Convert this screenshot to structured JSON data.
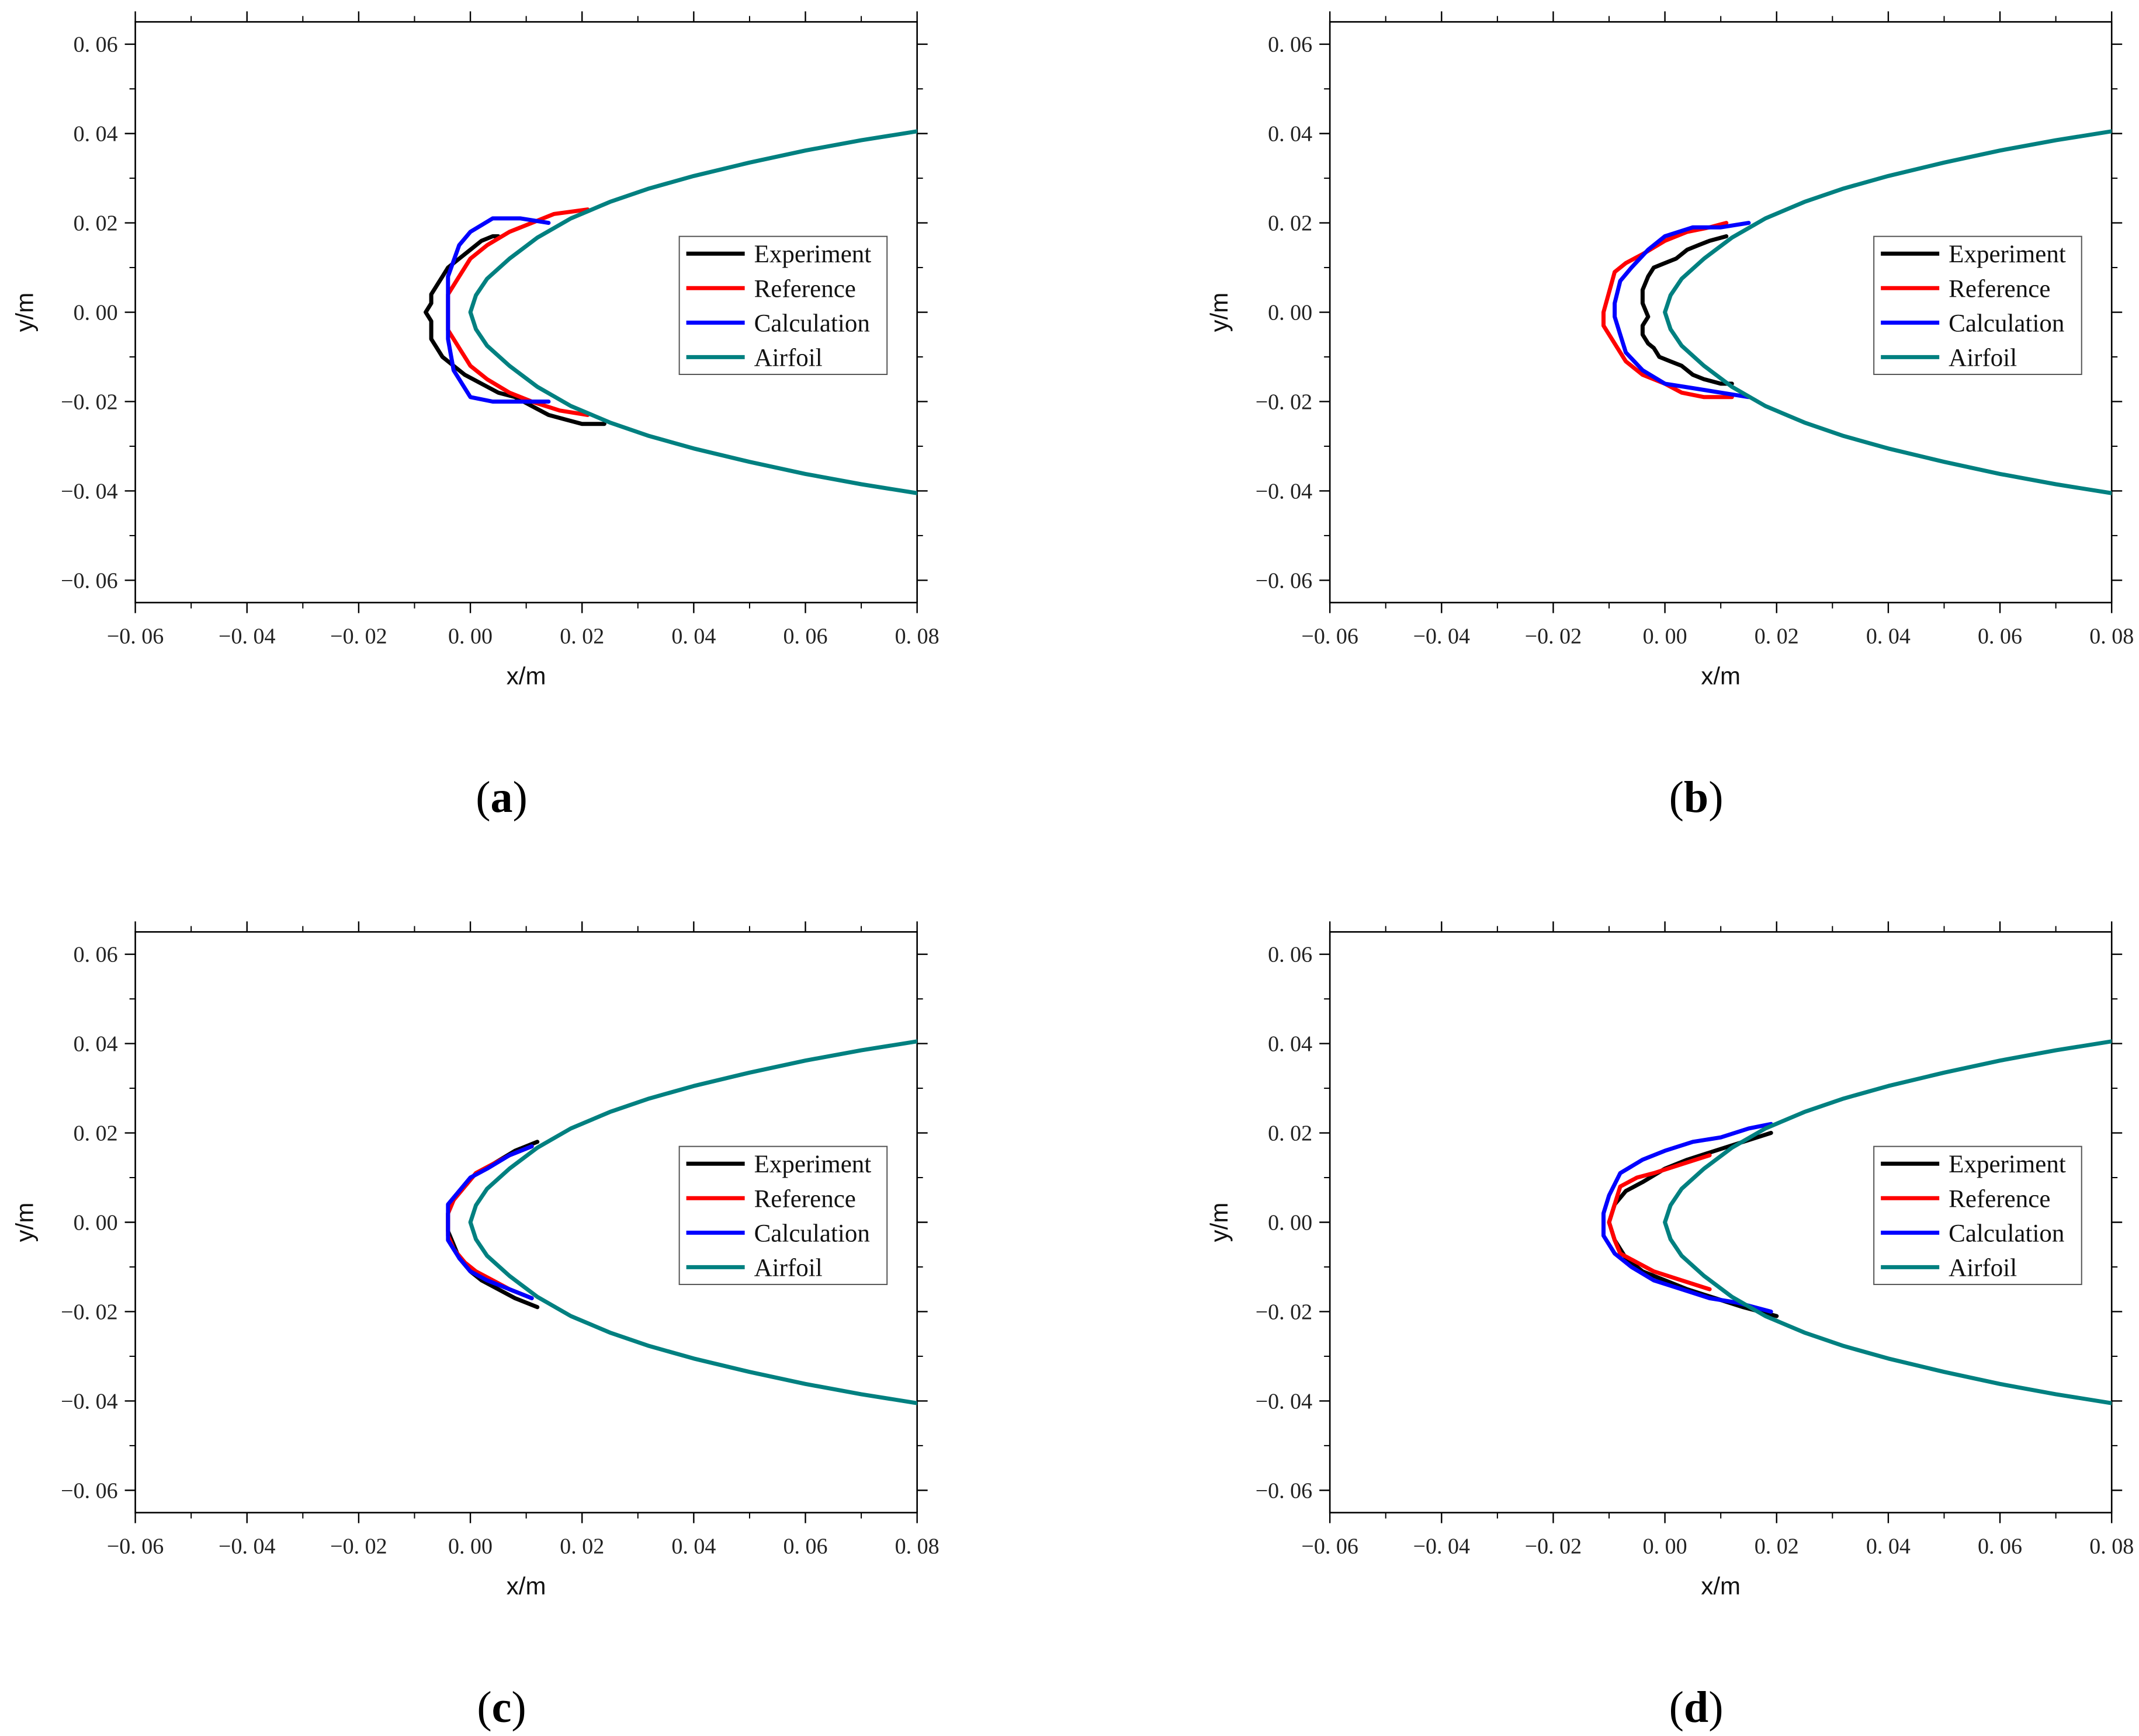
{
  "chart_data": [
    {
      "type": "line",
      "panel": "a",
      "panel_label": "a",
      "xlabel": "x/m",
      "ylabel": "y/m",
      "xlim": [
        -0.06,
        0.08
      ],
      "ylim": [
        -0.065,
        0.065
      ],
      "xticks": [
        -0.06,
        -0.04,
        -0.02,
        0.0,
        0.02,
        0.04,
        0.06,
        0.08
      ],
      "xtick_labels": [
        "−0. 06",
        "−0. 04",
        "−0. 02",
        "0. 00",
        "0. 02",
        "0. 04",
        "0. 06",
        "0. 08"
      ],
      "yticks": [
        0.06,
        0.04,
        0.02,
        0.0,
        -0.02,
        -0.04,
        -0.06
      ],
      "ytick_labels": [
        "0. 06",
        "0. 04",
        "0. 02",
        "0. 00",
        "−0. 02",
        "−0. 04",
        "−0. 06"
      ],
      "legend": [
        "Experiment",
        "Reference",
        "Calculation",
        "Airfoil"
      ],
      "series": [
        {
          "name": "Experiment",
          "color": "#000000",
          "x": [
            0.024,
            0.02,
            0.017,
            0.014,
            0.011,
            0.008,
            0.005,
            0.002,
            -0.001,
            -0.003,
            -0.005,
            -0.006,
            -0.007,
            -0.007,
            -0.007,
            -0.008,
            -0.007,
            -0.007,
            -0.006,
            -0.005,
            -0.004,
            -0.002,
            0.0,
            0.002,
            0.004,
            0.005
          ],
          "y": [
            -0.025,
            -0.025,
            -0.024,
            -0.023,
            -0.021,
            -0.019,
            -0.018,
            -0.016,
            -0.014,
            -0.012,
            -0.01,
            -0.008,
            -0.006,
            -0.004,
            -0.002,
            0.0,
            0.002,
            0.004,
            0.006,
            0.008,
            0.01,
            0.012,
            0.014,
            0.016,
            0.017,
            0.017
          ]
        },
        {
          "name": "Reference",
          "color": "#ff0000",
          "x": [
            0.021,
            0.016,
            0.011,
            0.007,
            0.003,
            0.0,
            -0.002,
            -0.004,
            -0.004,
            -0.004,
            -0.002,
            0.0,
            0.003,
            0.007,
            0.011,
            0.015,
            0.021
          ],
          "y": [
            -0.023,
            -0.022,
            -0.02,
            -0.018,
            -0.015,
            -0.012,
            -0.008,
            -0.004,
            0.0,
            0.004,
            0.008,
            0.012,
            0.015,
            0.018,
            0.02,
            0.022,
            0.023
          ]
        },
        {
          "name": "Calculation",
          "color": "#0000ff",
          "x": [
            0.014,
            0.009,
            0.004,
            0.0,
            -0.003,
            -0.004,
            -0.004,
            -0.004,
            -0.002,
            0.0,
            0.004,
            0.009,
            0.014
          ],
          "y": [
            -0.02,
            -0.02,
            -0.02,
            -0.019,
            -0.013,
            -0.006,
            0.0,
            0.008,
            0.015,
            0.018,
            0.021,
            0.021,
            0.02
          ]
        }
      ]
    },
    {
      "type": "line",
      "panel": "b",
      "panel_label": "b",
      "xlabel": "x/m",
      "ylabel": "y/m",
      "xlim": [
        -0.06,
        0.08
      ],
      "ylim": [
        -0.065,
        0.065
      ],
      "xticks": [
        -0.06,
        -0.04,
        -0.02,
        0.0,
        0.02,
        0.04,
        0.06,
        0.08
      ],
      "xtick_labels": [
        "−0. 06",
        "−0. 04",
        "−0. 02",
        "0. 00",
        "0. 02",
        "0. 04",
        "0. 06",
        "0. 08"
      ],
      "yticks": [
        0.06,
        0.04,
        0.02,
        0.0,
        -0.02,
        -0.04,
        -0.06
      ],
      "ytick_labels": [
        "0. 06",
        "0. 04",
        "0. 02",
        "0. 00",
        "−0. 02",
        "−0. 04",
        "−0. 06"
      ],
      "legend": [
        "Experiment",
        "Reference",
        "Calculation",
        "Airfoil"
      ],
      "series": [
        {
          "name": "Experiment",
          "color": "#000000",
          "x": [
            0.012,
            0.01,
            0.007,
            0.005,
            0.003,
            0.001,
            -0.001,
            -0.002,
            -0.003,
            -0.004,
            -0.004,
            -0.003,
            -0.004,
            -0.004,
            -0.003,
            -0.002,
            0.0,
            0.002,
            0.004,
            0.006,
            0.008,
            0.011
          ],
          "y": [
            -0.016,
            -0.016,
            -0.015,
            -0.014,
            -0.012,
            -0.011,
            -0.01,
            -0.008,
            -0.007,
            -0.005,
            -0.003,
            -0.001,
            0.002,
            0.005,
            0.008,
            0.01,
            0.011,
            0.012,
            0.014,
            0.015,
            0.016,
            0.017
          ]
        },
        {
          "name": "Reference",
          "color": "#ff0000",
          "x": [
            0.012,
            0.007,
            0.003,
            0.0,
            -0.004,
            -0.007,
            -0.009,
            -0.011,
            -0.011,
            -0.009,
            -0.007,
            -0.004,
            0.0,
            0.004,
            0.008,
            0.011
          ],
          "y": [
            -0.019,
            -0.019,
            -0.018,
            -0.016,
            -0.014,
            -0.011,
            -0.007,
            -0.003,
            0.0,
            0.009,
            0.011,
            0.013,
            0.016,
            0.018,
            0.019,
            0.02
          ]
        },
        {
          "name": "Calculation",
          "color": "#0000ff",
          "x": [
            0.015,
            0.01,
            0.005,
            0.0,
            -0.004,
            -0.007,
            -0.008,
            -0.009,
            -0.009,
            -0.008,
            -0.006,
            -0.003,
            0.0,
            0.005,
            0.01,
            0.015
          ],
          "y": [
            -0.019,
            -0.018,
            -0.017,
            -0.016,
            -0.013,
            -0.009,
            -0.005,
            -0.001,
            0.002,
            0.007,
            0.01,
            0.014,
            0.017,
            0.019,
            0.019,
            0.02
          ]
        }
      ]
    },
    {
      "type": "line",
      "panel": "c",
      "panel_label": "c",
      "xlabel": "x/m",
      "ylabel": "y/m",
      "xlim": [
        -0.06,
        0.08
      ],
      "ylim": [
        -0.065,
        0.065
      ],
      "xticks": [
        -0.06,
        -0.04,
        -0.02,
        0.0,
        0.02,
        0.04,
        0.06,
        0.08
      ],
      "xtick_labels": [
        "−0. 06",
        "−0. 04",
        "−0. 02",
        "0. 00",
        "0. 02",
        "0. 04",
        "0. 06",
        "0. 08"
      ],
      "yticks": [
        0.06,
        0.04,
        0.02,
        0.0,
        -0.02,
        -0.04,
        -0.06
      ],
      "ytick_labels": [
        "0. 06",
        "0. 04",
        "0. 02",
        "0. 00",
        "−0. 02",
        "−0. 04",
        "−0. 06"
      ],
      "legend": [
        "Experiment",
        "Reference",
        "Calculation",
        "Airfoil"
      ],
      "series": [
        {
          "name": "Experiment",
          "color": "#000000",
          "x": [
            0.012,
            0.008,
            0.005,
            0.002,
            0.0,
            -0.002,
            -0.003,
            -0.004,
            -0.004,
            -0.003,
            -0.001,
            0.001,
            0.004,
            0.008,
            0.012
          ],
          "y": [
            -0.019,
            -0.017,
            -0.015,
            -0.013,
            -0.011,
            -0.008,
            -0.005,
            -0.002,
            0.002,
            0.005,
            0.008,
            0.011,
            0.013,
            0.016,
            0.018
          ]
        },
        {
          "name": "Reference",
          "color": "#ff0000",
          "x": [
            0.011,
            0.007,
            0.004,
            0.001,
            -0.001,
            -0.003,
            -0.004,
            -0.004,
            -0.003,
            -0.001,
            0.001,
            0.004,
            0.007,
            0.011
          ],
          "y": [
            -0.017,
            -0.015,
            -0.013,
            -0.011,
            -0.009,
            -0.006,
            -0.003,
            0.002,
            0.005,
            0.008,
            0.011,
            0.013,
            0.015,
            0.017
          ]
        },
        {
          "name": "Calculation",
          "color": "#0000ff",
          "x": [
            0.011,
            0.007,
            0.003,
            0.0,
            -0.002,
            -0.004,
            -0.004,
            -0.004,
            -0.002,
            0.0,
            0.003,
            0.007,
            0.011
          ],
          "y": [
            -0.017,
            -0.015,
            -0.013,
            -0.011,
            -0.008,
            -0.004,
            0.0,
            0.004,
            0.007,
            0.01,
            0.012,
            0.015,
            0.017
          ]
        }
      ]
    },
    {
      "type": "line",
      "panel": "d",
      "panel_label": "d",
      "xlabel": "x/m",
      "ylabel": "y/m",
      "xlim": [
        -0.06,
        0.08
      ],
      "ylim": [
        -0.065,
        0.065
      ],
      "xticks": [
        -0.06,
        -0.04,
        -0.02,
        0.0,
        0.02,
        0.04,
        0.06,
        0.08
      ],
      "xtick_labels": [
        "−0. 06",
        "−0. 04",
        "−0. 02",
        "0. 00",
        "0. 02",
        "0. 04",
        "0. 06",
        "0. 08"
      ],
      "yticks": [
        0.06,
        0.04,
        0.02,
        0.0,
        -0.02,
        -0.04,
        -0.06
      ],
      "ytick_labels": [
        "0. 06",
        "0. 04",
        "0. 02",
        "0. 00",
        "−0. 02",
        "−0. 04",
        "−0. 06"
      ],
      "legend": [
        "Experiment",
        "Reference",
        "Calculation",
        "Airfoil"
      ],
      "series": [
        {
          "name": "Experiment",
          "color": "#000000",
          "x": [
            0.02,
            0.014,
            0.009,
            0.004,
            0.0,
            -0.004,
            -0.007,
            -0.009,
            -0.01,
            -0.009,
            -0.007,
            -0.004,
            0.0,
            0.004,
            0.009,
            0.014,
            0.019
          ],
          "y": [
            -0.021,
            -0.019,
            -0.017,
            -0.015,
            -0.013,
            -0.011,
            -0.008,
            -0.004,
            0.0,
            0.004,
            0.007,
            0.009,
            0.012,
            0.014,
            0.016,
            0.018,
            0.02
          ]
        },
        {
          "name": "Reference",
          "color": "#ff0000",
          "x": [
            0.008,
            0.003,
            -0.002,
            -0.005,
            -0.008,
            -0.009,
            -0.01,
            -0.009,
            -0.008,
            -0.005,
            -0.002,
            0.003,
            0.008
          ],
          "y": [
            -0.015,
            -0.013,
            -0.011,
            -0.009,
            -0.007,
            -0.004,
            0.0,
            0.004,
            0.008,
            0.01,
            0.011,
            0.013,
            0.015
          ]
        },
        {
          "name": "Calculation",
          "color": "#0000ff",
          "x": [
            0.019,
            0.013,
            0.008,
            0.003,
            -0.002,
            -0.006,
            -0.009,
            -0.011,
            -0.011,
            -0.01,
            -0.008,
            -0.004,
            0.0,
            0.005,
            0.01,
            0.015,
            0.019
          ],
          "y": [
            -0.02,
            -0.018,
            -0.017,
            -0.015,
            -0.013,
            -0.01,
            -0.007,
            -0.003,
            0.002,
            0.006,
            0.011,
            0.014,
            0.016,
            0.018,
            0.019,
            0.021,
            0.022
          ]
        }
      ]
    }
  ],
  "airfoil": {
    "name": "Airfoil",
    "color": "#008080",
    "x": [
      0.08,
      0.07,
      0.06,
      0.05,
      0.04,
      0.032,
      0.025,
      0.018,
      0.012,
      0.007,
      0.003,
      0.001,
      0.0,
      0.0,
      0.001,
      0.003,
      0.007,
      0.012,
      0.018,
      0.025,
      0.032,
      0.04,
      0.05,
      0.06,
      0.07,
      0.08
    ],
    "y": [
      -0.0405,
      -0.0385,
      -0.0362,
      -0.0335,
      -0.0305,
      -0.0277,
      -0.0247,
      -0.021,
      -0.0167,
      -0.012,
      -0.0075,
      -0.0038,
      0.0,
      0.0,
      0.0038,
      0.0075,
      0.012,
      0.0167,
      0.021,
      0.0247,
      0.0277,
      0.0305,
      0.0335,
      0.0362,
      0.0385,
      0.0405
    ]
  },
  "legend_colors": {
    "Experiment": "#000000",
    "Reference": "#ff0000",
    "Calculation": "#0000ff",
    "Airfoil": "#008080"
  }
}
